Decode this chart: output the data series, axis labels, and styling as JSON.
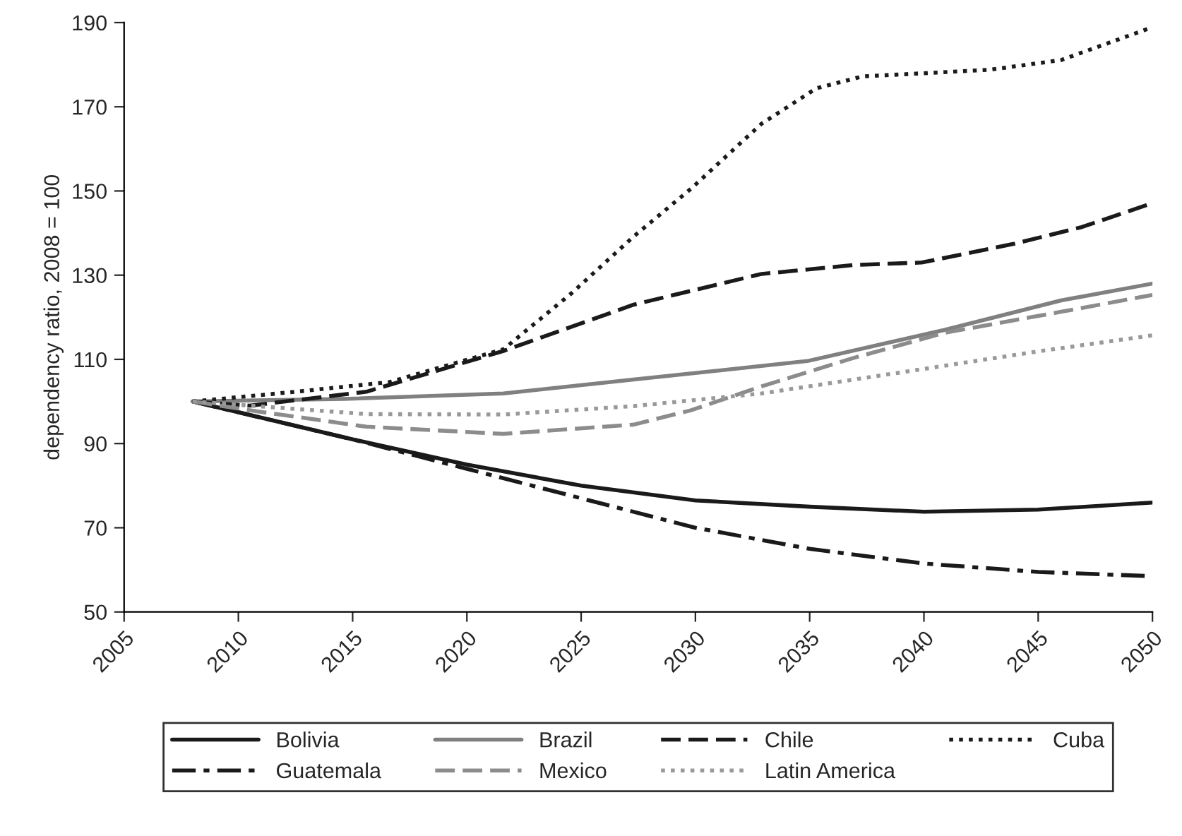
{
  "chart_data": {
    "type": "line",
    "ylabel": "dependency ratio, 2008 = 100",
    "xlim": [
      2005,
      2050
    ],
    "xticks": [
      2005,
      2010,
      2015,
      2020,
      2025,
      2030,
      2035,
      2040,
      2045,
      2050
    ],
    "ylim": [
      50,
      190
    ],
    "yticks": [
      50,
      70,
      90,
      110,
      130,
      150,
      170,
      190
    ],
    "grid": false,
    "legend": "bottom",
    "marker": "none",
    "series": [
      {
        "name": "Bolivia",
        "color": "#1a1a1a",
        "line_style": "solid",
        "x": [
          2008,
          2015,
          2020,
          2025,
          2030,
          2035,
          2040,
          2045,
          2050
        ],
        "values": [
          100,
          91,
          85,
          80,
          76.5,
          75,
          73.8,
          74.3,
          76
        ]
      },
      {
        "name": "Brazil",
        "color": "#808080",
        "line_style": "solid",
        "x": [
          2008,
          2014.6,
          2021.6,
          2027.3,
          2034.9,
          2040.9,
          2046,
          2050
        ],
        "values": [
          100,
          100.6,
          101.9,
          105.2,
          109.6,
          117,
          124,
          128
        ]
      },
      {
        "name": "Chile",
        "color": "#1a1a1a",
        "line_style": "dashed",
        "x": [
          2008,
          2010.5,
          2015.6,
          2021.6,
          2027.3,
          2032.9,
          2036.9,
          2039.9,
          2043.9,
          2046.9,
          2050
        ],
        "values": [
          100,
          99,
          102.3,
          112,
          123,
          130.3,
          132.4,
          133,
          137.4,
          141.4,
          147.1
        ]
      },
      {
        "name": "Cuba",
        "color": "#1a1a1a",
        "line_style": "dotted",
        "x": [
          2008,
          2012.5,
          2016.6,
          2021.6,
          2024.6,
          2027.3,
          2029.8,
          2032.9,
          2035.3,
          2037.3,
          2042.9,
          2046,
          2050
        ],
        "values": [
          100,
          102.3,
          104.6,
          112.4,
          125.8,
          139.2,
          150.5,
          166,
          174.4,
          177.2,
          178.8,
          181.1,
          188.9
        ]
      },
      {
        "name": "Guatemala",
        "color": "#1a1a1a",
        "line_style": "dashdot",
        "x": [
          2008,
          2015,
          2020,
          2025,
          2030,
          2035,
          2040,
          2045,
          2050
        ],
        "values": [
          100,
          91,
          84,
          77,
          70,
          65,
          61.5,
          59.5,
          58.5
        ]
      },
      {
        "name": "Mexico",
        "color": "#8c8c8c",
        "line_style": "dashed",
        "x": [
          2008,
          2010.5,
          2015.6,
          2021.6,
          2027.3,
          2029.8,
          2032.9,
          2036.9,
          2040.9,
          2046,
          2050
        ],
        "values": [
          100,
          97.9,
          94,
          92.3,
          94.5,
          97.9,
          103.6,
          110.3,
          116.3,
          121.3,
          125.3
        ]
      },
      {
        "name": "Latin America",
        "color": "#999999",
        "line_style": "dotted",
        "x": [
          2008,
          2015.6,
          2021.6,
          2027.3,
          2032.9,
          2039,
          2045,
          2050
        ],
        "values": [
          100,
          97,
          96.9,
          98.9,
          101.9,
          106.9,
          111.9,
          115.7
        ]
      }
    ]
  }
}
